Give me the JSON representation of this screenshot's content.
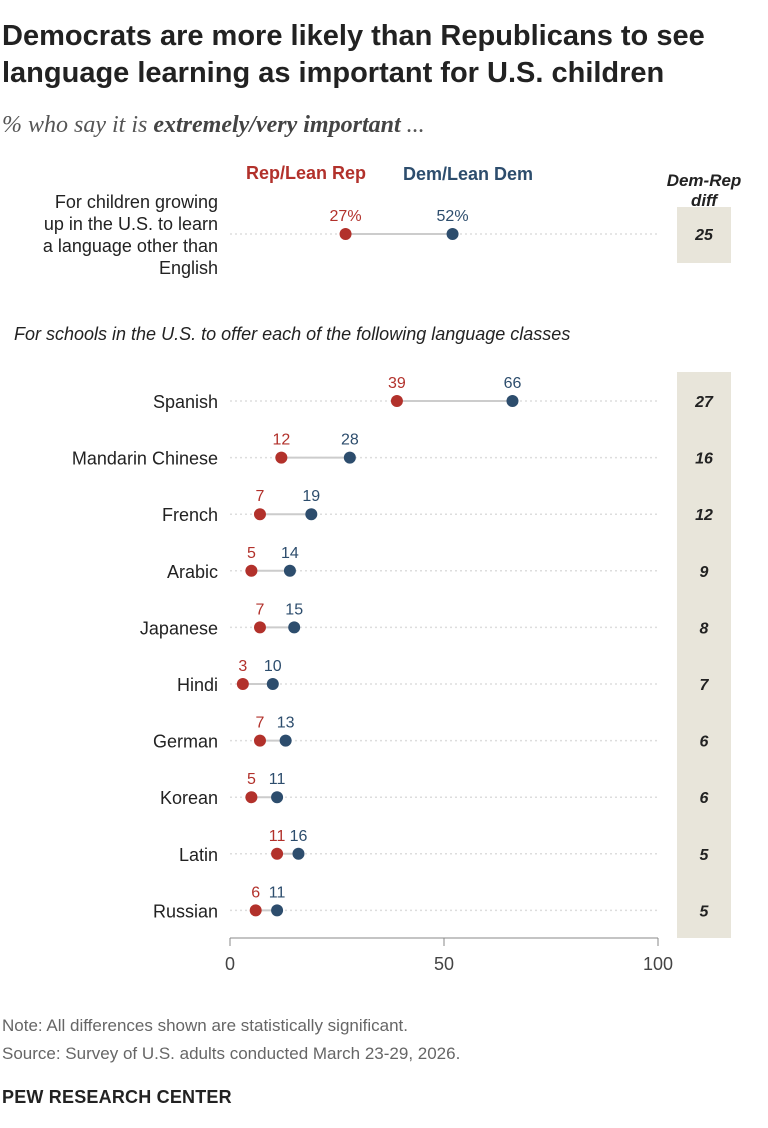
{
  "header": {
    "title": "Democrats are more likely than Republicans to see language learning as important for U.S. children",
    "subtitle_lead": "% who say it is ",
    "subtitle_bold": "extremely/very important",
    "subtitle_tail": " ..."
  },
  "colors": {
    "rep": "#b2312b",
    "dem": "#2d4d6d",
    "diff_bg": "#e8e5da",
    "guide": "#dddddd"
  },
  "chart_data": {
    "type": "dot",
    "legend": [
      "Rep/Lean Rep",
      "Dem/Lean Dem"
    ],
    "diff_header": "Dem-Rep diff",
    "xlim": [
      0,
      100
    ],
    "xticks": [
      0,
      50,
      100
    ],
    "top_item": {
      "category": "For children growing up in the U.S. to learn a language other than English",
      "label_lines": [
        "For children growing",
        "up in the U.S. to learn",
        "a language other than",
        "English"
      ],
      "rep": 27,
      "dem": 52,
      "rep_label": "27%",
      "dem_label": "52%",
      "diff": 25
    },
    "section_label": "For schools in the U.S. to offer each of the following language classes",
    "categories": [
      "Spanish",
      "Mandarin Chinese",
      "French",
      "Arabic",
      "Japanese",
      "Hindi",
      "German",
      "Korean",
      "Latin",
      "Russian"
    ],
    "series": [
      {
        "name": "Rep/Lean Rep",
        "values": [
          39,
          12,
          7,
          5,
          7,
          3,
          7,
          5,
          11,
          6
        ]
      },
      {
        "name": "Dem/Lean Dem",
        "values": [
          66,
          28,
          19,
          14,
          15,
          10,
          13,
          11,
          16,
          11
        ]
      }
    ],
    "diff": [
      27,
      16,
      12,
      9,
      8,
      7,
      6,
      6,
      5,
      5
    ]
  },
  "footer": {
    "note": "Note: All differences shown are statistically significant.",
    "source": "Source: Survey of U.S. adults conducted March 23-29, 2026.",
    "brand": "PEW RESEARCH CENTER"
  }
}
